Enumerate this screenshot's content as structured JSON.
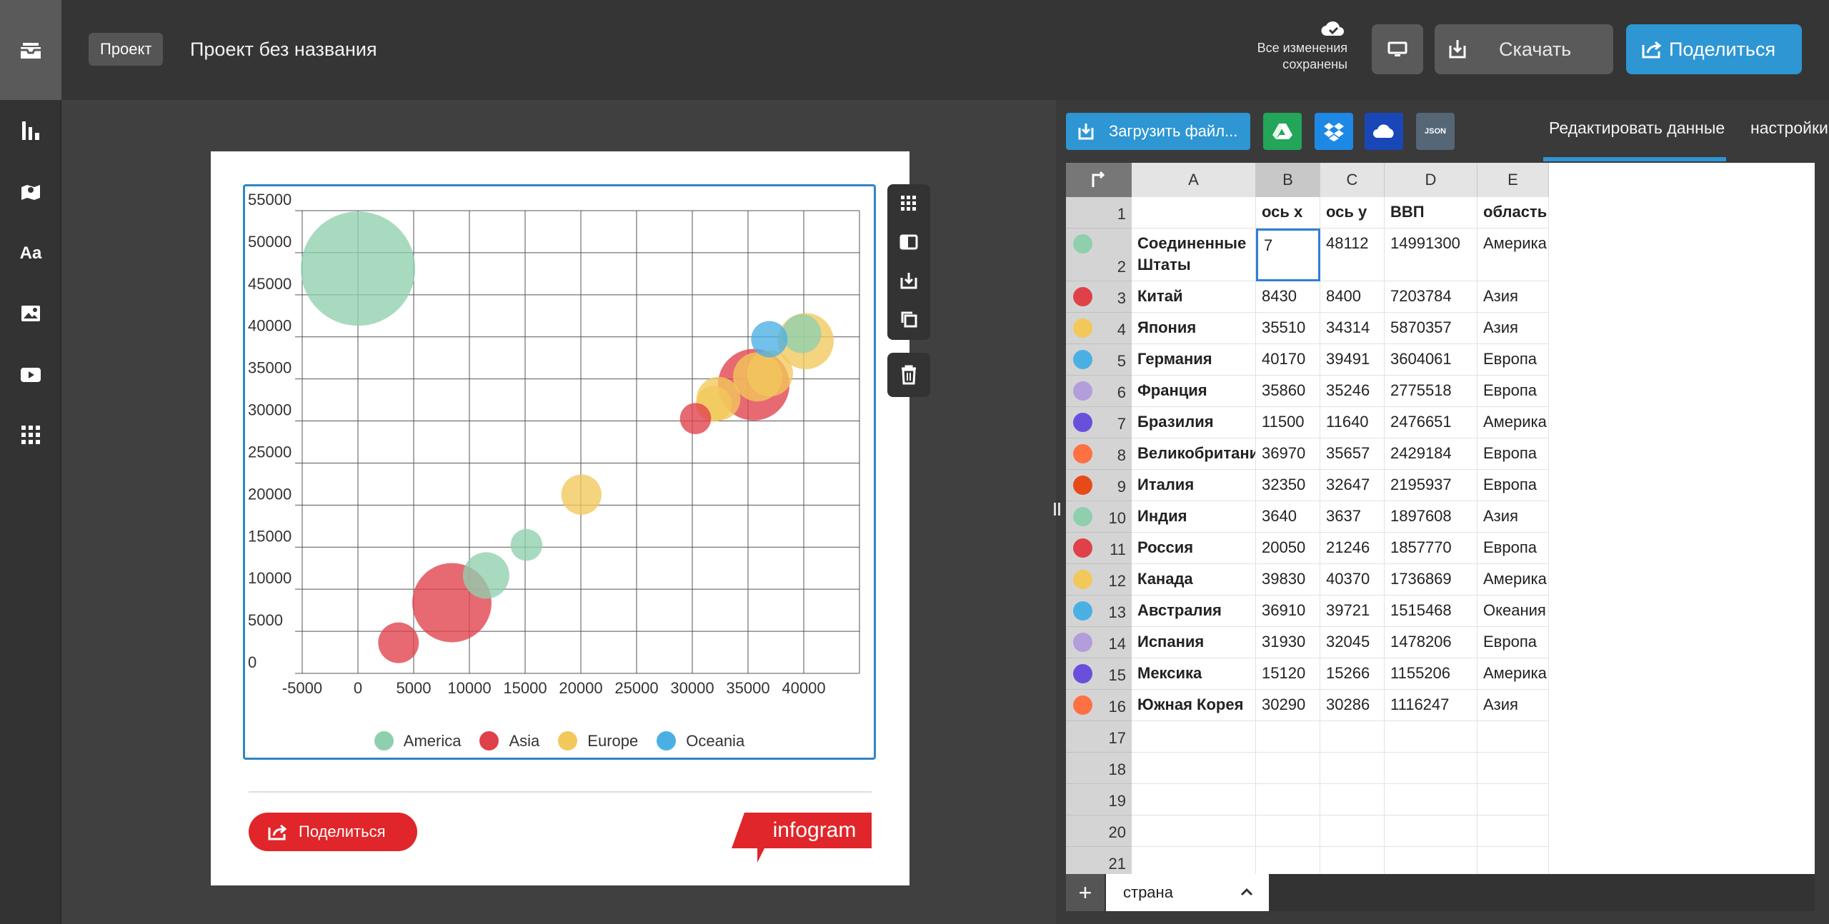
{
  "topbar": {
    "project_tag": "Проект",
    "project_title": "Проект без названия",
    "saved_line1": "Все изменения",
    "saved_line2": "сохранены",
    "download_label": "Скачать",
    "share_label": "Поделиться"
  },
  "rail": {
    "items": [
      "library-icon",
      "chart-icon",
      "map-icon",
      "text-icon",
      "image-icon",
      "video-icon",
      "more-icon"
    ]
  },
  "card": {
    "share_label": "Поделиться",
    "logo_text": "infogram"
  },
  "panel": {
    "upload_label": "Загрузить файл...",
    "json_label": "JSON",
    "tab_edit": "Редактировать данные",
    "tab_settings": "настройки"
  },
  "sheet": {
    "columns": [
      "A",
      "B",
      "C",
      "D",
      "E"
    ],
    "header_row": [
      "",
      "ось x",
      "ось y",
      "ВВП",
      "область"
    ],
    "rows": [
      [
        "Соединенные Штаты",
        "7",
        "48112",
        "14991300",
        "Америка"
      ],
      [
        "Китай",
        "8430",
        "8400",
        "7203784",
        "Азия"
      ],
      [
        "Япония",
        "35510",
        "34314",
        "5870357",
        "Азия"
      ],
      [
        "Германия",
        "40170",
        "39491",
        "3604061",
        "Европа"
      ],
      [
        "Франция",
        "35860",
        "35246",
        "2775518",
        "Европа"
      ],
      [
        "Бразилия",
        "11500",
        "11640",
        "2476651",
        "Америка"
      ],
      [
        "Великобритания",
        "36970",
        "35657",
        "2429184",
        "Европа"
      ],
      [
        "Италия",
        "32350",
        "32647",
        "2195937",
        "Европа"
      ],
      [
        "Индия",
        "3640",
        "3637",
        "1897608",
        "Азия"
      ],
      [
        "Россия",
        "20050",
        "21246",
        "1857770",
        "Европа"
      ],
      [
        "Канада",
        "39830",
        "40370",
        "1736869",
        "Америка"
      ],
      [
        "Австралия",
        "36910",
        "39721",
        "1515468",
        "Океания"
      ],
      [
        "Испания",
        "31930",
        "32045",
        "1478206",
        "Европа"
      ],
      [
        "Мексика",
        "15120",
        "15266",
        "1155206",
        "Америка"
      ],
      [
        "Южная Корея",
        "30290",
        "30286",
        "1116247",
        "Азия"
      ]
    ],
    "row_numbers": [
      "1",
      "2",
      "3",
      "4",
      "5",
      "6",
      "7",
      "8",
      "9",
      "10",
      "11",
      "12",
      "13",
      "14",
      "15",
      "16",
      "17",
      "18",
      "19",
      "20",
      "21"
    ],
    "row_dot_colors": [
      "#8fcfae",
      "#e0404a",
      "#f2c85b",
      "#4ab0e4",
      "#b39ddb",
      "#6a4fdc",
      "#ff7043",
      "#e64a19"
    ],
    "sheet_tab": "страна"
  },
  "colors": {
    "accent": "#2e96d3",
    "america": "#8fcfae",
    "asia": "#e0404a",
    "europe": "#f2c85b",
    "oceania": "#4ab0e4",
    "brand_red": "#e0262a"
  },
  "chart_data": {
    "type": "scatter",
    "xlim": [
      -5000,
      45000
    ],
    "ylim": [
      0,
      55000
    ],
    "x_ticks": [
      -5000,
      0,
      5000,
      10000,
      15000,
      20000,
      25000,
      30000,
      35000,
      40000
    ],
    "y_ticks": [
      0,
      5000,
      10000,
      15000,
      20000,
      25000,
      30000,
      35000,
      40000,
      45000,
      50000,
      55000
    ],
    "legend": [
      "America",
      "Asia",
      "Europe",
      "Oceania"
    ],
    "points": [
      {
        "label": "Соединенные Штаты",
        "x": 7,
        "y": 48112,
        "size": 14991300,
        "group": "America"
      },
      {
        "label": "Китай",
        "x": 8430,
        "y": 8400,
        "size": 7203784,
        "group": "Asia"
      },
      {
        "label": "Япония",
        "x": 35510,
        "y": 34314,
        "size": 5870357,
        "group": "Asia"
      },
      {
        "label": "Германия",
        "x": 40170,
        "y": 39491,
        "size": 3604061,
        "group": "Europe"
      },
      {
        "label": "Франция",
        "x": 35860,
        "y": 35246,
        "size": 2775518,
        "group": "Europe"
      },
      {
        "label": "Бразилия",
        "x": 11500,
        "y": 11640,
        "size": 2476651,
        "group": "America"
      },
      {
        "label": "Великобритания",
        "x": 36970,
        "y": 35657,
        "size": 2429184,
        "group": "Europe"
      },
      {
        "label": "Италия",
        "x": 32350,
        "y": 32647,
        "size": 2195937,
        "group": "Europe"
      },
      {
        "label": "Индия",
        "x": 3640,
        "y": 3637,
        "size": 1897608,
        "group": "Asia"
      },
      {
        "label": "Россия",
        "x": 20050,
        "y": 21246,
        "size": 1857770,
        "group": "Europe"
      },
      {
        "label": "Канада",
        "x": 39830,
        "y": 40370,
        "size": 1736869,
        "group": "America"
      },
      {
        "label": "Австралия",
        "x": 36910,
        "y": 39721,
        "size": 1515468,
        "group": "Oceania"
      },
      {
        "label": "Испания",
        "x": 31930,
        "y": 32045,
        "size": 1478206,
        "group": "Europe"
      },
      {
        "label": "Мексика",
        "x": 15120,
        "y": 15266,
        "size": 1155206,
        "group": "America"
      },
      {
        "label": "Южная Корея",
        "x": 30290,
        "y": 30286,
        "size": 1116247,
        "group": "Asia"
      }
    ]
  }
}
